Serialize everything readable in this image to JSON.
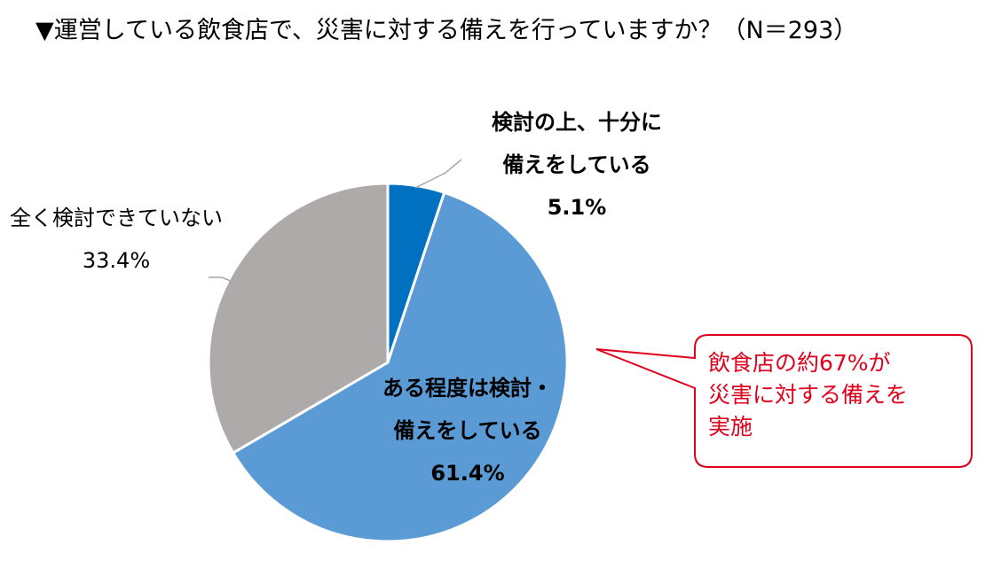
{
  "title": "▼運営している飲食店で、災害に対する備えを行っていますか？（N＝293）",
  "chart_data": {
    "type": "pie",
    "title": "▼運営している飲食店で、災害に対する備えを行っていますか？（N＝293）",
    "n": 293,
    "start_angle_deg": 0,
    "direction": "clockwise",
    "slices": [
      {
        "label_line1": "検討の上、十分に",
        "label_line2": "備えをしている",
        "value": 5.1,
        "value_text": "5.1%",
        "color": "#0070c0"
      },
      {
        "label_line1": "ある程度は検討・",
        "label_line2": "備えをしている",
        "value": 61.4,
        "value_text": "61.4%",
        "color": "#5b9bd5"
      },
      {
        "label_line1": "全く検討できていない",
        "label_line2": "",
        "value": 33.4,
        "value_text": "33.4%",
        "color": "#aeaaaa"
      }
    ]
  },
  "callout": {
    "lines": [
      "飲食店の約67%が",
      "災害に対する備えを",
      "実施"
    ],
    "color": "#e0001b"
  }
}
